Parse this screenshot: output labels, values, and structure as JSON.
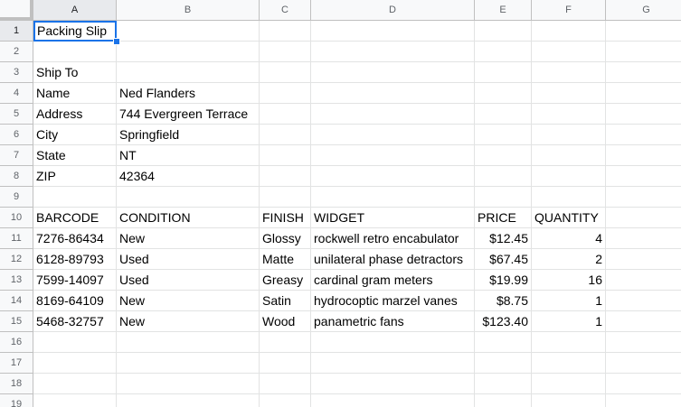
{
  "sheet": {
    "columns": [
      "A",
      "B",
      "C",
      "D",
      "E",
      "F",
      "G"
    ],
    "rows": [
      "1",
      "2",
      "3",
      "4",
      "5",
      "6",
      "7",
      "8",
      "9",
      "10",
      "11",
      "12",
      "13",
      "14",
      "15",
      "16",
      "17",
      "18",
      "19"
    ],
    "active_cell": "A1",
    "selection_color": "#1a73e8",
    "title": "Packing Slip",
    "ship_to_label": "Ship To",
    "ship_to": [
      {
        "label": "Name",
        "value": "Ned Flanders"
      },
      {
        "label": "Address",
        "value": "744 Evergreen Terrace"
      },
      {
        "label": "City",
        "value": "Springfield"
      },
      {
        "label": "State",
        "value": "NT"
      },
      {
        "label": "ZIP",
        "value": "42364"
      }
    ],
    "table_headers": [
      "BARCODE",
      "CONDITION",
      "FINISH",
      "WIDGET",
      "PRICE",
      "QUANTITY"
    ],
    "table_rows": [
      [
        "7276-86434",
        "New",
        "Glossy",
        "rockwell retro encabulator",
        "$12.45",
        "4"
      ],
      [
        "6128-89793",
        "Used",
        "Matte",
        "unilateral phase detractors",
        "$67.45",
        "2"
      ],
      [
        "7599-14097",
        "Used",
        "Greasy",
        "cardinal gram meters",
        "$19.99",
        "16"
      ],
      [
        "8169-64109",
        "New",
        "Satin",
        "hydrocoptic marzel vanes",
        "$8.75",
        "1"
      ],
      [
        "5468-32757",
        "New",
        "Wood",
        "panametric fans",
        "$123.40",
        "1"
      ]
    ]
  }
}
